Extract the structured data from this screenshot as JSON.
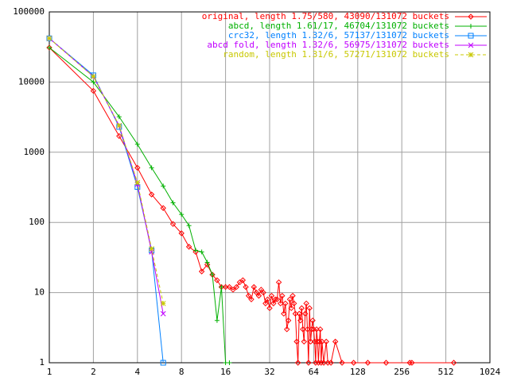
{
  "chart_data": {
    "type": "line",
    "xlog": true,
    "ylog": true,
    "grid": true,
    "legend": "top-right",
    "xlim": [
      1,
      1024
    ],
    "xticks": [
      1,
      2,
      4,
      8,
      16,
      32,
      64,
      128,
      256,
      512,
      1024
    ],
    "ylim": [
      1,
      100000
    ],
    "yticks": [
      1,
      10,
      100,
      1000,
      10000,
      100000
    ],
    "series": [
      {
        "name": "original, length 1.75/580, 43090/131072 buckets",
        "color": "#ff0000",
        "marker": "diamond",
        "dashed": false,
        "x": [
          1,
          2,
          3,
          4,
          5,
          6,
          7,
          8,
          9,
          10,
          11,
          12,
          13,
          14,
          15,
          16,
          17,
          18,
          19,
          20,
          21,
          22,
          23,
          24,
          25,
          26,
          27,
          28,
          29,
          30,
          31,
          32,
          33,
          34,
          35,
          36,
          37,
          38,
          39,
          40,
          41,
          42,
          43,
          44,
          45,
          46,
          47,
          48,
          49,
          50,
          51,
          52,
          53,
          54,
          55,
          56,
          57,
          58,
          59,
          60,
          61,
          62,
          63,
          64,
          65,
          66,
          67,
          68,
          69,
          70,
          71,
          72,
          73,
          75,
          78,
          80,
          84,
          90,
          100,
          120,
          150,
          200,
          290,
          300,
          580
        ],
        "values": [
          31000,
          7500,
          1700,
          600,
          250,
          160,
          95,
          70,
          45,
          38,
          20,
          25,
          18,
          15,
          12,
          12,
          12,
          11,
          12,
          14,
          15,
          12,
          9,
          8,
          12,
          10,
          9,
          11,
          10,
          7,
          8,
          6,
          9,
          7,
          8,
          8,
          14,
          7,
          9,
          5,
          7,
          3,
          4,
          8,
          6,
          9,
          7,
          5,
          2,
          1,
          5,
          4,
          6,
          3,
          2,
          5,
          7,
          3,
          1,
          6,
          2,
          3,
          4,
          3,
          2,
          1,
          3,
          2,
          1,
          2,
          3,
          1,
          2,
          1,
          2,
          1,
          1,
          2,
          1,
          1,
          1,
          1,
          1,
          1,
          1
        ]
      },
      {
        "name": "abcd, length 1.61/17, 46704/131072 buckets",
        "color": "#00b000",
        "marker": "plus",
        "dashed": false,
        "x": [
          1,
          2,
          3,
          4,
          5,
          6,
          7,
          8,
          9,
          10,
          11,
          12,
          13,
          14,
          15,
          16,
          17
        ],
        "values": [
          31000,
          10000,
          3200,
          1300,
          600,
          330,
          190,
          130,
          90,
          40,
          38,
          27,
          18,
          4,
          12,
          1,
          1
        ]
      },
      {
        "name": "crc32, length 1.32/6, 57137/131072 buckets",
        "color": "#0080ff",
        "marker": "square",
        "dashed": false,
        "x": [
          1,
          2,
          3,
          4,
          5,
          6
        ],
        "values": [
          42000,
          12500,
          2300,
          320,
          40,
          1
        ]
      },
      {
        "name": "abcd fold, length 1.32/6, 56975/131072 buckets",
        "color": "#c000ff",
        "marker": "cross",
        "dashed": false,
        "x": [
          1,
          2,
          3,
          4,
          5,
          6
        ],
        "values": [
          42000,
          12000,
          2400,
          350,
          38,
          5
        ]
      },
      {
        "name": "random, length 1.31/6, 57271/131072 buckets",
        "color": "#c8c800",
        "marker": "star",
        "dashed": true,
        "x": [
          1,
          2,
          3,
          4,
          5,
          6
        ],
        "values": [
          42000,
          12000,
          2400,
          370,
          42,
          7
        ]
      }
    ]
  }
}
